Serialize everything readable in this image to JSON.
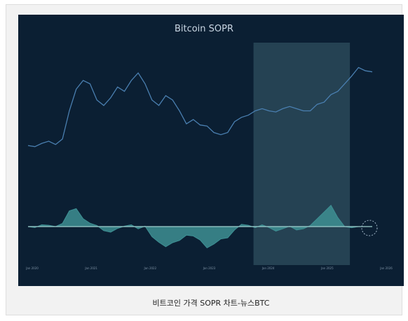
{
  "caption": "비트코인 가격 SOPR 차트-뉴스BTC",
  "colors": {
    "background": "#0b1f33",
    "price_line": "#4a7fb0",
    "sopr_fill": "#3e8f93",
    "highlight": "#2f4f5f"
  },
  "chart_data": {
    "type": "line",
    "title": "Bitcoin SOPR",
    "subtitle": "",
    "legend_position": "bottom",
    "grid": false,
    "x_ticks": [
      "Jan 2020",
      "Jan 2021",
      "Jan 2022",
      "Jan 2023",
      "Jan 2024",
      "Jan 2025",
      "Jan 2026"
    ],
    "highlight_range": [
      0.655,
      0.935
    ],
    "series": [
      {
        "name": "",
        "kind": "price",
        "x": [
          0.0,
          0.02,
          0.04,
          0.06,
          0.08,
          0.1,
          0.12,
          0.14,
          0.16,
          0.18,
          0.2,
          0.22,
          0.24,
          0.26,
          0.28,
          0.3,
          0.32,
          0.34,
          0.36,
          0.38,
          0.4,
          0.42,
          0.44,
          0.46,
          0.48,
          0.5,
          0.52,
          0.54,
          0.56,
          0.58,
          0.6,
          0.62,
          0.64,
          0.66,
          0.68,
          0.7,
          0.72,
          0.74,
          0.76,
          0.78,
          0.8,
          0.82,
          0.84,
          0.86,
          0.88,
          0.9,
          0.92,
          0.94,
          0.96,
          0.98,
          1.0
        ],
        "values": [
          0.18,
          0.17,
          0.2,
          0.22,
          0.19,
          0.24,
          0.5,
          0.7,
          0.78,
          0.75,
          0.6,
          0.55,
          0.62,
          0.72,
          0.68,
          0.78,
          0.85,
          0.75,
          0.6,
          0.55,
          0.64,
          0.6,
          0.5,
          0.38,
          0.42,
          0.37,
          0.36,
          0.3,
          0.28,
          0.3,
          0.4,
          0.44,
          0.46,
          0.5,
          0.52,
          0.5,
          0.49,
          0.52,
          0.54,
          0.52,
          0.5,
          0.5,
          0.56,
          0.58,
          0.65,
          0.68,
          0.75,
          0.82,
          0.9,
          0.87,
          0.86
        ]
      },
      {
        "name": "",
        "kind": "sopr",
        "x": [
          0.0,
          0.02,
          0.04,
          0.06,
          0.08,
          0.1,
          0.12,
          0.14,
          0.16,
          0.18,
          0.2,
          0.22,
          0.24,
          0.26,
          0.28,
          0.3,
          0.32,
          0.34,
          0.36,
          0.38,
          0.4,
          0.42,
          0.44,
          0.46,
          0.48,
          0.5,
          0.52,
          0.54,
          0.56,
          0.58,
          0.6,
          0.62,
          0.64,
          0.66,
          0.68,
          0.7,
          0.72,
          0.74,
          0.76,
          0.78,
          0.8,
          0.82,
          0.84,
          0.86,
          0.88,
          0.9,
          0.92,
          0.94,
          0.96,
          0.98,
          1.0
        ],
        "values": [
          0.0,
          -0.04,
          0.08,
          0.06,
          0.0,
          0.14,
          0.7,
          0.8,
          0.35,
          0.15,
          0.05,
          -0.18,
          -0.25,
          -0.08,
          0.02,
          0.08,
          -0.1,
          0.02,
          -0.45,
          -0.7,
          -0.9,
          -0.72,
          -0.62,
          -0.38,
          -0.42,
          -0.6,
          -0.95,
          -0.78,
          -0.55,
          -0.5,
          -0.15,
          0.1,
          0.06,
          -0.05,
          0.08,
          -0.04,
          -0.2,
          -0.1,
          0.02,
          -0.15,
          -0.1,
          0.05,
          0.35,
          0.65,
          0.95,
          0.4,
          0.0,
          -0.05,
          0.0,
          0.0,
          0.0
        ]
      }
    ]
  }
}
